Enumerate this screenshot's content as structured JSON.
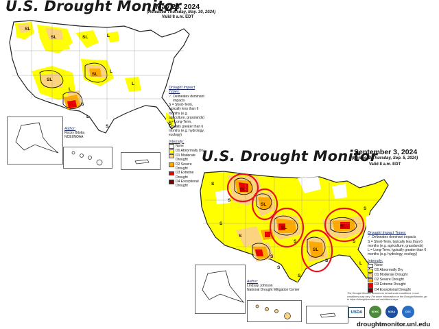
{
  "map_top": {
    "title": "U.S. Drought Monitor",
    "date": "May 28, 2024",
    "released": "(Released Thursday, May. 30, 2024)",
    "valid": "Valid 8 a.m. EDT",
    "author_label": "Author:",
    "author_name": "Rocky Bilotta",
    "author_org": "NCEI/NOAA",
    "labels": [
      "SL",
      "SL",
      "SL",
      "L",
      "SL",
      "L",
      "L",
      "SL",
      "L",
      "S",
      "L",
      "S",
      "S"
    ]
  },
  "map_bottom": {
    "title": "U.S. Drought Monitor",
    "date": "September 3, 2024",
    "released": "(Released Thursday, Sep. 5, 2024)",
    "valid": "Valid 8 a.m. EDT",
    "author_label": "Author:",
    "author_name": "Lindsay Johnson",
    "author_org": "National Drought Mitigation Center",
    "labels": [
      "S",
      "S",
      "SL",
      "S",
      "S",
      "SL",
      "SL",
      "S",
      "SL",
      "SL",
      "S",
      "S",
      "S",
      "S",
      "S",
      "L",
      "S"
    ],
    "footnote": "The Drought Monitor focuses on broad-scale conditions. Local conditions may vary. For more information on the Drought Monitor, go to https://droughtmonitor.unl.edu/About.aspx",
    "logos": [
      "USDA",
      "NDMC",
      "NOAA",
      "DOC"
    ],
    "website": "droughtmonitor.unl.edu"
  },
  "legend": {
    "impact_title": "Drought Impact Types:",
    "delineates": "Delineates dominant impacts",
    "short_term": "S = Short-Term, typically less than 6 months (e.g. agriculture, grasslands)",
    "long_term": "L = Long-Term, typically greater than 6 months (e.g. hydrology, ecology)",
    "intensity_title": "Intensity:",
    "levels": [
      {
        "label": "None",
        "color": "#ffffff"
      },
      {
        "label": "D0 Abnormally Dry",
        "color": "#ffff00"
      },
      {
        "label": "D1 Moderate Drought",
        "color": "#fcd37f"
      },
      {
        "label": "D2 Severe Drought",
        "color": "#ffaa00"
      },
      {
        "label": "D3 Extreme Drought",
        "color": "#e60000"
      },
      {
        "label": "D4 Exceptional Drought",
        "color": "#730000"
      }
    ]
  },
  "annotation_color": "#e8141b"
}
